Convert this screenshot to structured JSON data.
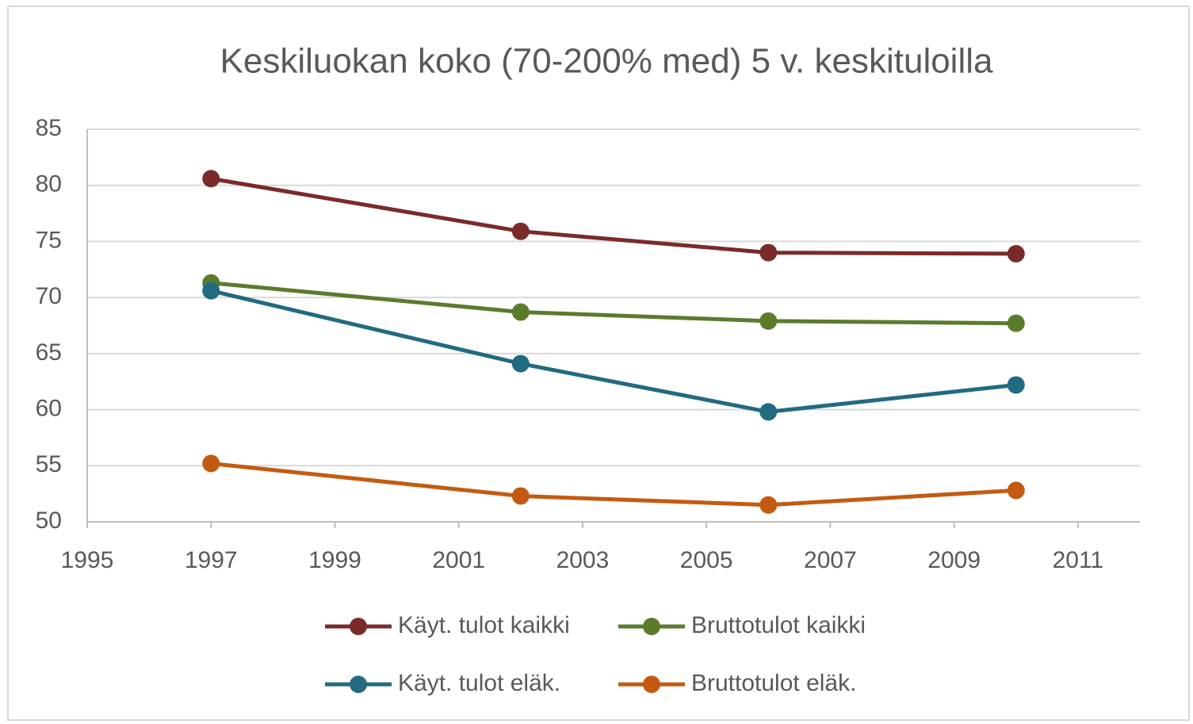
{
  "chart_data": {
    "type": "line",
    "title": "Keskiluokan koko (70-200% med) 5 v. keskituloilla",
    "x": [
      1997,
      2002,
      2006,
      2010
    ],
    "series": [
      {
        "name": "Käyt. tulot kaikki",
        "color": "#7b2a2a",
        "values": [
          80.6,
          75.9,
          74.0,
          73.9
        ]
      },
      {
        "name": "Bruttotulot kaikki",
        "color": "#5b7b2c",
        "values": [
          71.3,
          68.7,
          67.9,
          67.7
        ]
      },
      {
        "name": "Käyt. tulot eläk.",
        "color": "#226a80",
        "values": [
          70.6,
          64.1,
          59.8,
          62.2
        ]
      },
      {
        "name": "Bruttotulot eläk.",
        "color": "#c45a12",
        "values": [
          55.2,
          52.3,
          51.5,
          52.8
        ]
      }
    ],
    "xlim": [
      1995,
      2012
    ],
    "xticks": [
      1995,
      1997,
      1999,
      2001,
      2003,
      2005,
      2007,
      2009,
      2011
    ],
    "ylim": [
      50,
      85
    ],
    "yticks": [
      50,
      55,
      60,
      65,
      70,
      75,
      80,
      85
    ],
    "grid": true,
    "legend": "bottom"
  }
}
